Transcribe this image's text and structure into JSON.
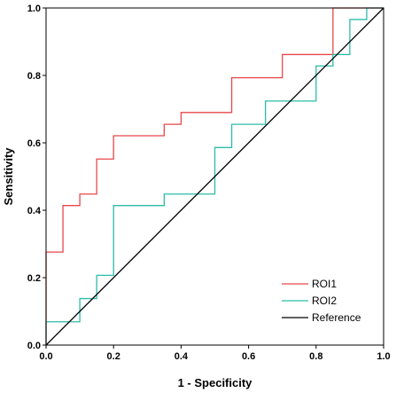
{
  "chart_data": {
    "type": "line",
    "xlabel": "1 - Specificity",
    "ylabel": "Sensitivity",
    "xlim": [
      0.0,
      1.0
    ],
    "ylim": [
      0.0,
      1.0
    ],
    "x_ticks": [
      "0.0",
      "0.2",
      "0.4",
      "0.6",
      "0.8",
      "1.0"
    ],
    "y_ticks": [
      "0.0",
      "0.2",
      "0.4",
      "0.6",
      "0.8",
      "1.0"
    ],
    "grid": false,
    "legend_position": "bottom-right",
    "series": [
      {
        "name": "ROI1",
        "color": "#e8474b",
        "points": [
          [
            0.0,
            0.0
          ],
          [
            0.0,
            0.276
          ],
          [
            0.05,
            0.276
          ],
          [
            0.05,
            0.414
          ],
          [
            0.1,
            0.414
          ],
          [
            0.1,
            0.448
          ],
          [
            0.15,
            0.448
          ],
          [
            0.15,
            0.552
          ],
          [
            0.2,
            0.552
          ],
          [
            0.2,
            0.621
          ],
          [
            0.35,
            0.621
          ],
          [
            0.35,
            0.655
          ],
          [
            0.4,
            0.655
          ],
          [
            0.4,
            0.69
          ],
          [
            0.55,
            0.69
          ],
          [
            0.55,
            0.793
          ],
          [
            0.7,
            0.793
          ],
          [
            0.7,
            0.862
          ],
          [
            0.85,
            0.862
          ],
          [
            0.85,
            1.0
          ],
          [
            1.0,
            1.0
          ]
        ]
      },
      {
        "name": "ROI2",
        "color": "#2bbca8",
        "points": [
          [
            0.0,
            0.0
          ],
          [
            0.0,
            0.069
          ],
          [
            0.1,
            0.069
          ],
          [
            0.1,
            0.138
          ],
          [
            0.15,
            0.138
          ],
          [
            0.15,
            0.207
          ],
          [
            0.2,
            0.207
          ],
          [
            0.2,
            0.414
          ],
          [
            0.35,
            0.414
          ],
          [
            0.35,
            0.448
          ],
          [
            0.5,
            0.448
          ],
          [
            0.5,
            0.586
          ],
          [
            0.55,
            0.586
          ],
          [
            0.55,
            0.655
          ],
          [
            0.65,
            0.655
          ],
          [
            0.65,
            0.724
          ],
          [
            0.8,
            0.724
          ],
          [
            0.8,
            0.828
          ],
          [
            0.85,
            0.828
          ],
          [
            0.85,
            0.862
          ],
          [
            0.9,
            0.862
          ],
          [
            0.9,
            0.966
          ],
          [
            0.95,
            0.966
          ],
          [
            0.95,
            1.0
          ],
          [
            1.0,
            1.0
          ]
        ]
      },
      {
        "name": "Reference",
        "color": "#000000",
        "points": [
          [
            0.0,
            0.0
          ],
          [
            1.0,
            1.0
          ]
        ]
      }
    ]
  }
}
